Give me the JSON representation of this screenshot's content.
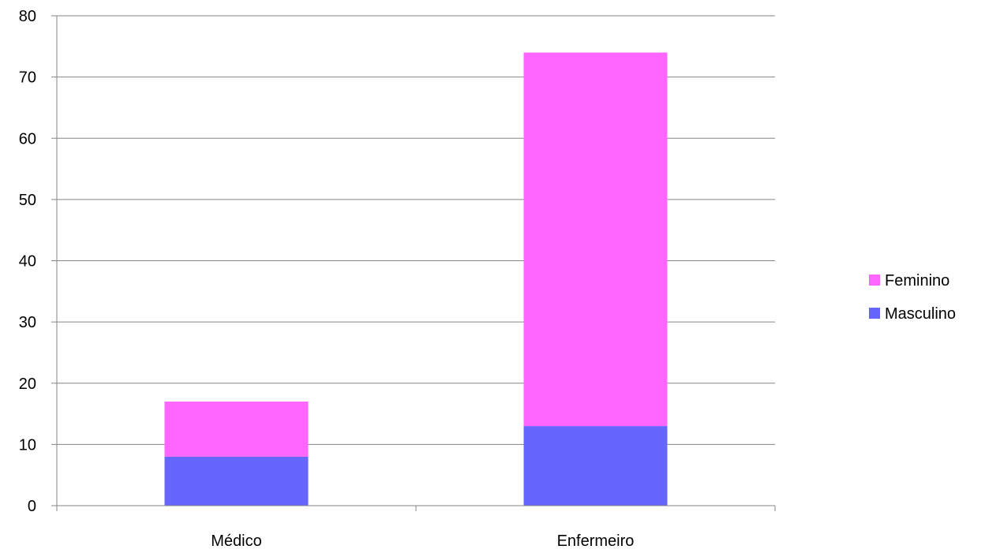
{
  "chart_data": {
    "type": "bar",
    "stacked": true,
    "categories": [
      "Médico",
      "Enfermeiro"
    ],
    "series": [
      {
        "name": "Masculino",
        "values": [
          8,
          13
        ],
        "color": "#6666ff"
      },
      {
        "name": "Feminino",
        "values": [
          9,
          61
        ],
        "color": "#ff66ff"
      }
    ],
    "ylim": [
      0,
      80
    ],
    "yticks": [
      0,
      10,
      20,
      30,
      40,
      50,
      60,
      70,
      80
    ],
    "grid": true,
    "legend_position": "right"
  }
}
